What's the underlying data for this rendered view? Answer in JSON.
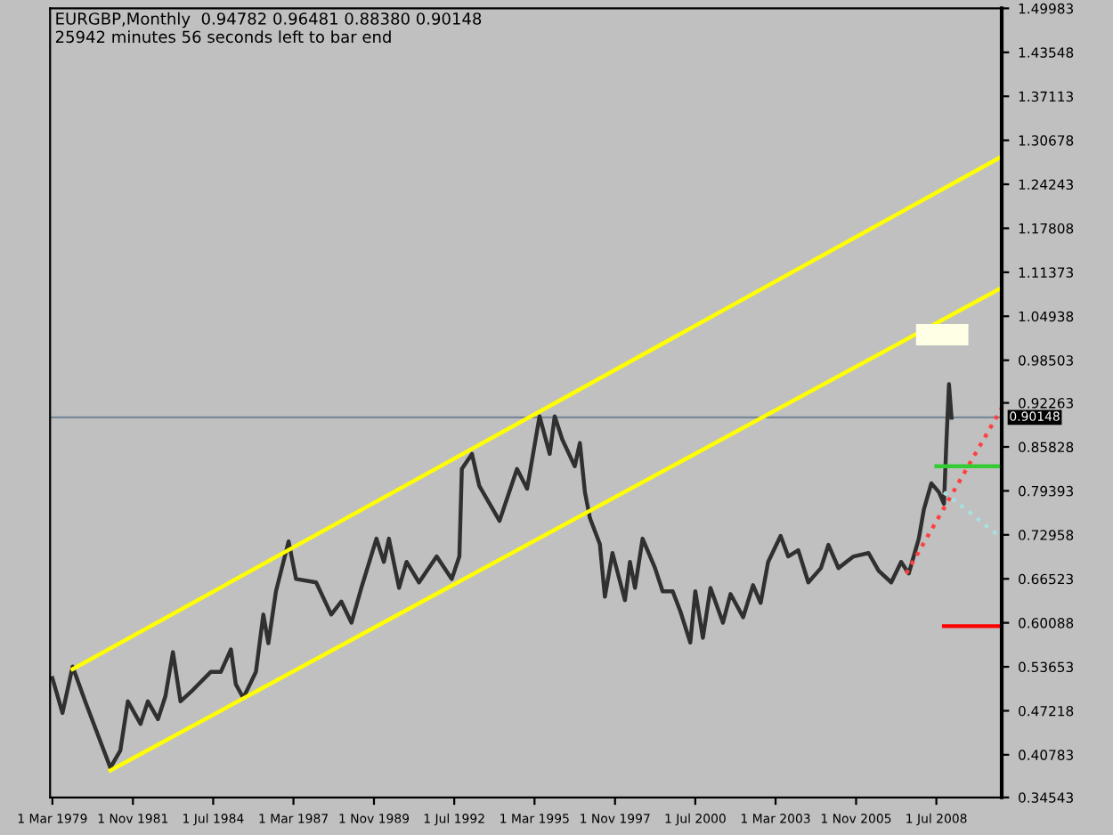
{
  "chart_data": {
    "type": "line",
    "title": "EURGBP,Monthly  0.94782 0.96481 0.88380 0.90148",
    "subtitle": "25942 minutes 56 seconds left to bar end",
    "xlim": [
      "1979-02",
      "2010-09"
    ],
    "ylim": [
      0.34543,
      1.49983
    ],
    "xticks": [
      {
        "value": "1979-03",
        "label": "1 Mar 1979"
      },
      {
        "value": "1981-11",
        "label": "1 Nov 1981"
      },
      {
        "value": "1984-07",
        "label": "1 Jul 1984"
      },
      {
        "value": "1987-03",
        "label": "1 Mar 1987"
      },
      {
        "value": "1989-11",
        "label": "1 Nov 1989"
      },
      {
        "value": "1992-07",
        "label": "1 Jul 1992"
      },
      {
        "value": "1995-03",
        "label": "1 Mar 1995"
      },
      {
        "value": "1997-11",
        "label": "1 Nov 1997"
      },
      {
        "value": "2000-07",
        "label": "1 Jul 2000"
      },
      {
        "value": "2003-03",
        "label": "1 Mar 2003"
      },
      {
        "value": "2005-11",
        "label": "1 Nov 2005"
      },
      {
        "value": "2008-07",
        "label": "1 Jul 2008"
      }
    ],
    "yticks": [
      0.34543,
      0.40783,
      0.47218,
      0.53653,
      0.60088,
      0.66523,
      0.72958,
      0.79393,
      0.85828,
      0.92263,
      0.98503,
      1.04938,
      1.11373,
      1.17808,
      1.24243,
      1.30678,
      1.37113,
      1.43548,
      1.49983
    ],
    "grid": false,
    "legend": false,
    "ref_lines": [
      {
        "axis": "y",
        "value": 0.90148,
        "label": "0.90148",
        "color": "#778899"
      }
    ],
    "series": [
      {
        "color": "#303030",
        "line_style": "solid",
        "x": [
          "1979-03",
          "1979-07",
          "1979-11",
          "1980-04",
          "1980-11",
          "1981-02",
          "1981-06",
          "1981-09",
          "1982-02",
          "1982-05",
          "1982-09",
          "1982-12",
          "1983-03",
          "1983-06",
          "1983-11",
          "1984-06",
          "1984-10",
          "1985-02",
          "1985-04",
          "1985-07",
          "1985-12",
          "1986-03",
          "1986-05",
          "1986-08",
          "1987-01",
          "1987-04",
          "1987-12",
          "1988-06",
          "1988-10",
          "1989-02",
          "1989-06",
          "1989-12",
          "1990-03",
          "1990-05",
          "1990-09",
          "1990-12",
          "1991-05",
          "1991-12",
          "1992-06",
          "1992-09",
          "1992-10",
          "1993-02",
          "1993-05",
          "1994-01",
          "1994-08",
          "1994-12",
          "1995-05",
          "1995-09",
          "1995-11",
          "1996-02",
          "1996-07",
          "1996-09",
          "1996-11",
          "1997-01",
          "1997-05",
          "1997-07",
          "1997-10",
          "1998-03",
          "1998-05",
          "1998-07",
          "1998-10",
          "1999-03",
          "1999-06",
          "1999-10",
          "2000-01",
          "2000-05",
          "2000-07",
          "2000-10",
          "2001-01",
          "2001-06",
          "2001-09",
          "2002-02",
          "2002-06",
          "2002-09",
          "2002-12",
          "2003-05",
          "2003-08",
          "2003-12",
          "2004-04",
          "2004-09",
          "2004-12",
          "2005-04",
          "2005-10",
          "2006-04",
          "2006-08",
          "2007-01",
          "2007-05",
          "2007-08",
          "2007-12",
          "2008-02",
          "2008-05",
          "2008-08",
          "2008-10",
          "2008-11",
          "2008-12",
          "2009-01"
        ],
        "values": [
          0.52,
          0.469,
          0.537,
          0.486,
          0.418,
          0.389,
          0.414,
          0.486,
          0.453,
          0.486,
          0.46,
          0.494,
          0.558,
          0.486,
          0.503,
          0.529,
          0.529,
          0.562,
          0.511,
          0.491,
          0.529,
          0.613,
          0.571,
          0.647,
          0.72,
          0.665,
          0.66,
          0.613,
          0.632,
          0.601,
          0.652,
          0.724,
          0.69,
          0.724,
          0.652,
          0.69,
          0.66,
          0.698,
          0.665,
          0.698,
          0.826,
          0.848,
          0.801,
          0.75,
          0.826,
          0.797,
          0.903,
          0.848,
          0.903,
          0.869,
          0.83,
          0.864,
          0.792,
          0.754,
          0.716,
          0.639,
          0.703,
          0.634,
          0.69,
          0.652,
          0.724,
          0.681,
          0.647,
          0.647,
          0.618,
          0.572,
          0.647,
          0.579,
          0.652,
          0.601,
          0.643,
          0.609,
          0.656,
          0.63,
          0.69,
          0.728,
          0.698,
          0.707,
          0.66,
          0.681,
          0.715,
          0.681,
          0.698,
          0.703,
          0.677,
          0.66,
          0.69,
          0.673,
          0.724,
          0.767,
          0.805,
          0.792,
          0.775,
          0.869,
          0.95,
          0.901
        ]
      },
      {
        "color": "#ffff00",
        "line_style": "solid",
        "x": [
          "1979-11",
          "2010-09"
        ],
        "values": [
          0.533,
          1.283
        ]
      },
      {
        "color": "#ffff00",
        "line_style": "solid",
        "x": [
          "1981-02",
          "2010-09"
        ],
        "values": [
          0.385,
          1.091
        ]
      },
      {
        "color": "#ff4040",
        "line_style": "dotted",
        "x": [
          "2007-07",
          "2010-09"
        ],
        "values": [
          0.673,
          0.915
        ]
      },
      {
        "color": "#a8e0e0",
        "line_style": "dotted",
        "x": [
          "2008-10",
          "2010-09"
        ],
        "values": [
          0.792,
          0.725
        ]
      },
      {
        "color": "#33cc33",
        "line_style": "solid",
        "x": [
          "2008-07",
          "2010-09"
        ],
        "values": [
          0.83,
          0.83
        ]
      },
      {
        "color": "#ff0000",
        "line_style": "solid",
        "x": [
          "2008-10",
          "2010-09"
        ],
        "values": [
          0.596,
          0.596
        ]
      }
    ]
  }
}
